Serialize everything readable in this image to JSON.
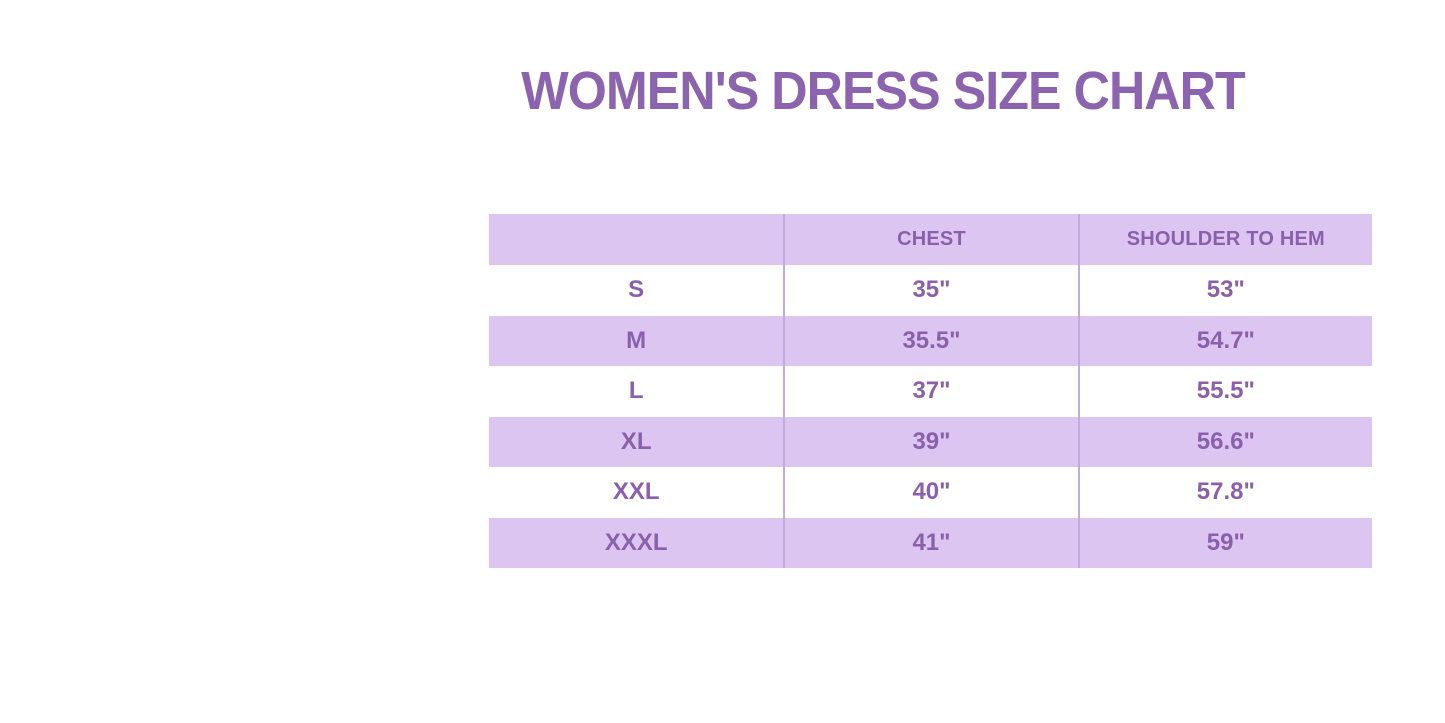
{
  "title": {
    "text": "WOMEN'S DRESS SIZE CHART"
  },
  "colors": {
    "title_text": "#8c63af",
    "table_text": "#8a5fac",
    "lavender_row_bg": "#dcc6f1",
    "white_row_bg": "#ffffff",
    "column_divider": "#c3aae1"
  },
  "chart_data": {
    "type": "table",
    "title": "WOMEN'S DRESS SIZE CHART",
    "columns": [
      "",
      "CHEST",
      "SHOULDER TO HEM"
    ],
    "rows": [
      [
        "S",
        "35\"",
        "53\""
      ],
      [
        "M",
        "35.5\"",
        "54.7\""
      ],
      [
        "L",
        "37\"",
        "55.5\""
      ],
      [
        "XL",
        "39\"",
        "56.6\""
      ],
      [
        "XXL",
        "40\"",
        "57.8\""
      ],
      [
        "XXXL",
        "41\"",
        "59\""
      ]
    ],
    "layout": {
      "row_striping": [
        "lavender-header",
        "white",
        "lavender",
        "white",
        "lavender",
        "white",
        "lavender"
      ],
      "grid": "vertical-dividers-only",
      "text_align": "center"
    }
  }
}
